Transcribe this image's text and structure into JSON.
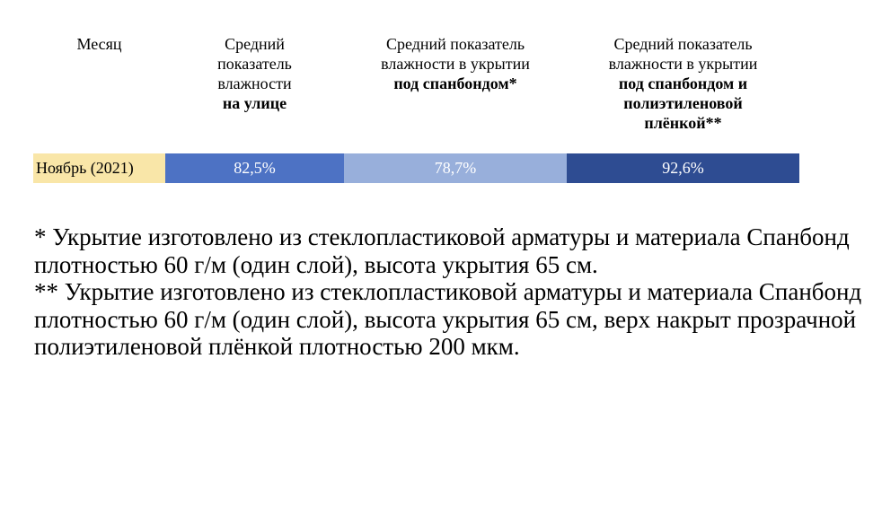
{
  "table": {
    "headers": [
      {
        "lines": [
          "Месяц"
        ],
        "bold_lines": []
      },
      {
        "lines": [
          "Средний",
          "показатель",
          "влажности"
        ],
        "bold_lines": [
          "на улице"
        ]
      },
      {
        "lines": [
          "Средний показатель",
          "влажности в укрытии"
        ],
        "bold_lines": [
          "под спанбондом*"
        ]
      },
      {
        "lines": [
          "Средний показатель",
          "влажности в укрытии"
        ],
        "bold_lines": [
          "под спанбондом и",
          "полиэтиленовой",
          "плёнкой**"
        ]
      }
    ],
    "row": {
      "month": "Ноябрь (2021)",
      "values": [
        "82,5%",
        "78,7%",
        "92,6%"
      ]
    },
    "colors": {
      "month_bg": "#F9E6A8",
      "col2_bg": "#4D72C4",
      "col3_bg": "#98AFDB",
      "col4_bg": "#2E4C92"
    }
  },
  "notes": [
    "* Укрытие изготовлено из стеклопластиковой арматуры и материала Спанбонд плотностью 60 г/м (один слой), высота укрытия 65 см.",
    "** Укрытие изготовлено из стеклопластиковой арматуры и материала Спанбонд плотностью 60 г/м (один слой), высота укрытия 65 см, верх накрыт прозрачной полиэтиленовой плёнкой плотностью 200 мкм."
  ]
}
